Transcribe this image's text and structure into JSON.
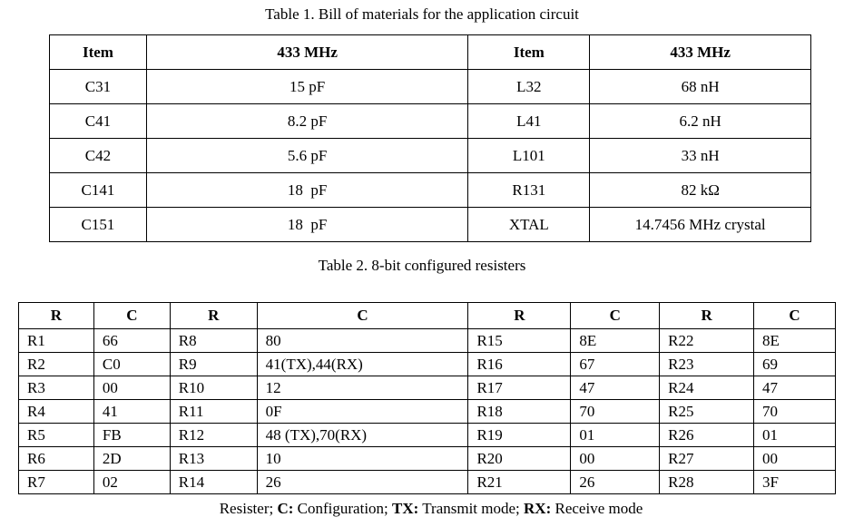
{
  "table1": {
    "caption": "Table 1. Bill of materials for the application circuit",
    "headers": [
      "Item",
      "433 MHz",
      "Item",
      "433 MHz"
    ],
    "rows": [
      [
        "C31",
        "15 pF",
        "L32",
        "68 nH"
      ],
      [
        "C41",
        "8.2 pF",
        "L41",
        "6.2 nH"
      ],
      [
        "C42",
        "5.6 pF",
        "L101",
        "33 nH"
      ],
      [
        "C141",
        "18  pF",
        "R131",
        "82 kΩ"
      ],
      [
        "C151",
        "18  pF",
        "XTAL",
        "14.7456 MHz crystal"
      ]
    ]
  },
  "table2": {
    "caption": "Table 2. 8-bit configured resisters",
    "headers": [
      "R",
      "C",
      "R",
      "C",
      "R",
      "C",
      "R",
      "C"
    ],
    "rows": [
      [
        "R1",
        "66",
        "R8",
        "80",
        "R15",
        "8E",
        "R22",
        "8E"
      ],
      [
        "R2",
        "C0",
        "R9",
        "41(TX),44(RX)",
        "R16",
        "67",
        "R23",
        "69"
      ],
      [
        "R3",
        "00",
        "R10",
        "12",
        "R17",
        "47",
        "R24",
        "47"
      ],
      [
        "R4",
        "41",
        "R11",
        "0F",
        "R18",
        "70",
        "R25",
        "70"
      ],
      [
        "R5",
        "FB",
        "R12",
        "48 (TX),70(RX)",
        "R19",
        "01",
        "R26",
        "01"
      ],
      [
        "R6",
        "2D",
        "R13",
        "10",
        "R20",
        "00",
        "R27",
        "00"
      ],
      [
        "R7",
        "02",
        "R14",
        "26",
        "R21",
        "26",
        "R28",
        "3F"
      ]
    ]
  },
  "legend": {
    "r_text": "Resister; ",
    "c_key": "C:",
    "c_text": " Configuration; ",
    "tx_key": "TX:",
    "tx_text": " Transmit mode; ",
    "rx_key": "RX:",
    "rx_text": " Receive mode"
  }
}
